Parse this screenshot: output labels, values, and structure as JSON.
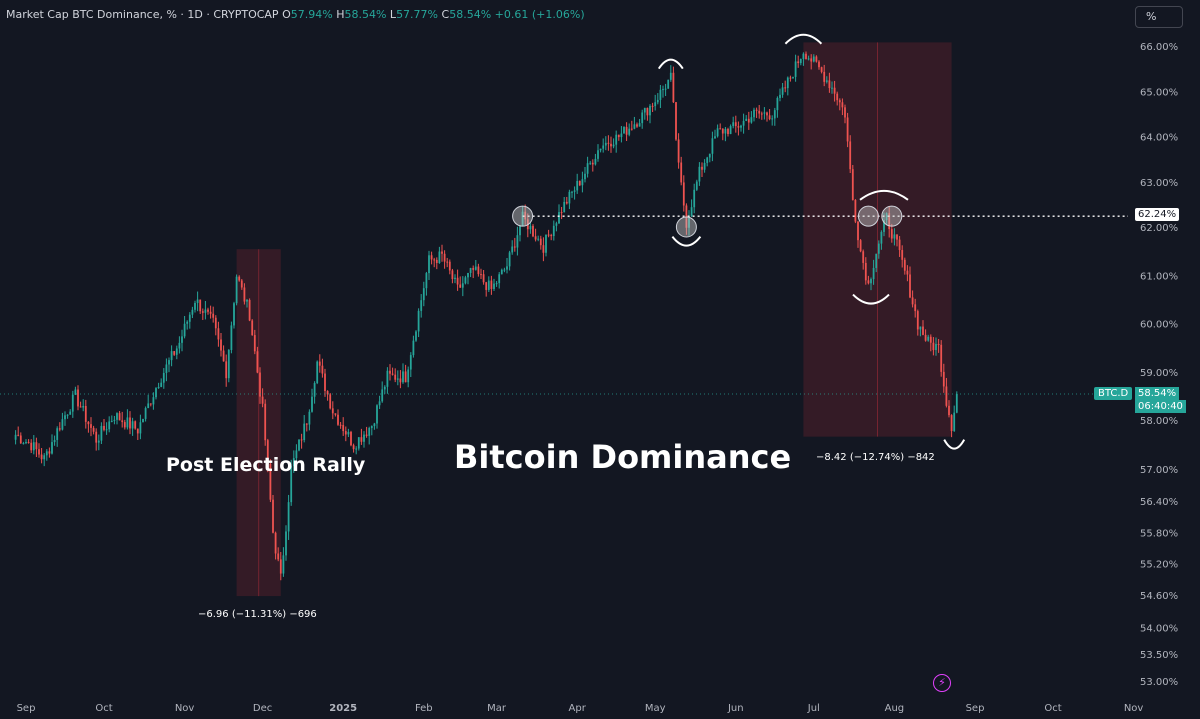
{
  "header": {
    "title": "Market Cap BTC Dominance, % · 1D · CRYPTOCAP",
    "o_label": "O",
    "o_value": "57.94%",
    "h_label": "H",
    "h_value": "58.54%",
    "l_label": "L",
    "l_value": "57.77%",
    "c_label": "C",
    "c_value": "58.54%",
    "change": "+0.61 (+1.06%)"
  },
  "toolbar": {
    "scale_button": "%"
  },
  "annotations": {
    "main_title": "Bitcoin Dominance",
    "rally_label": "Post Election Rally",
    "measure_1": "−6.96 (−11.31%) −696",
    "measure_2": "−8.42 (−12.74%) −842"
  },
  "price_tags": {
    "level_line": "62.24%",
    "symbol": "BTC.D",
    "last_price": "58.54%",
    "countdown": "06:40:40"
  },
  "colors": {
    "background": "#131722",
    "up": "#26a69a",
    "down": "#ef5350",
    "axis_text": "#b2b5be",
    "measure_box": "rgba(242,54,69,0.15)"
  },
  "chart_data": {
    "type": "candlestick",
    "title": "Market Cap BTC Dominance, % · 1D · CRYPTOCAP",
    "ylim": [
      52.8,
      66.6
    ],
    "y_ticks": [
      "66.00%",
      "65.00%",
      "64.00%",
      "63.00%",
      "62.00%",
      "61.00%",
      "60.00%",
      "59.00%",
      "58.00%",
      "57.00%",
      "56.40%",
      "55.80%",
      "55.20%",
      "54.60%",
      "54.00%",
      "53.50%",
      "53.00%"
    ],
    "x_ticks": [
      "Sep",
      "Oct",
      "Nov",
      "Dec",
      "2025",
      "Feb",
      "Mar",
      "Apr",
      "May",
      "Jun",
      "Jul",
      "Aug",
      "Sep",
      "Oct",
      "Nov"
    ],
    "anchors": [
      {
        "date": "2024-08-28",
        "value": 57.7
      },
      {
        "date": "2024-09-03",
        "value": 57.5
      },
      {
        "date": "2024-09-08",
        "value": 57.2
      },
      {
        "date": "2024-09-14",
        "value": 57.9
      },
      {
        "date": "2024-09-20",
        "value": 58.5
      },
      {
        "date": "2024-09-28",
        "value": 57.6
      },
      {
        "date": "2024-10-05",
        "value": 58.1
      },
      {
        "date": "2024-10-14",
        "value": 57.8
      },
      {
        "date": "2024-10-22",
        "value": 58.8
      },
      {
        "date": "2024-10-30",
        "value": 59.6
      },
      {
        "date": "2024-11-05",
        "value": 60.5
      },
      {
        "date": "2024-11-12",
        "value": 60.0
      },
      {
        "date": "2024-11-17",
        "value": 59.0
      },
      {
        "date": "2024-11-21",
        "value": 61.0
      },
      {
        "date": "2024-11-26",
        "value": 60.2
      },
      {
        "date": "2024-12-01",
        "value": 58.2
      },
      {
        "date": "2024-12-05",
        "value": 55.8
      },
      {
        "date": "2024-12-08",
        "value": 54.9
      },
      {
        "date": "2024-12-12",
        "value": 57.0
      },
      {
        "date": "2024-12-18",
        "value": 58.0
      },
      {
        "date": "2024-12-22",
        "value": 59.2
      },
      {
        "date": "2024-12-28",
        "value": 58.2
      },
      {
        "date": "2025-01-05",
        "value": 57.5
      },
      {
        "date": "2025-01-12",
        "value": 57.9
      },
      {
        "date": "2025-01-18",
        "value": 58.9
      },
      {
        "date": "2025-01-25",
        "value": 58.9
      },
      {
        "date": "2025-02-03",
        "value": 61.3
      },
      {
        "date": "2025-02-08",
        "value": 61.4
      },
      {
        "date": "2025-02-14",
        "value": 60.7
      },
      {
        "date": "2025-02-20",
        "value": 61.1
      },
      {
        "date": "2025-02-27",
        "value": 60.7
      },
      {
        "date": "2025-03-05",
        "value": 61.2
      },
      {
        "date": "2025-03-11",
        "value": 62.2
      },
      {
        "date": "2025-03-19",
        "value": 61.6
      },
      {
        "date": "2025-03-26",
        "value": 62.4
      },
      {
        "date": "2025-04-03",
        "value": 63.1
      },
      {
        "date": "2025-04-10",
        "value": 63.8
      },
      {
        "date": "2025-04-17",
        "value": 64.0
      },
      {
        "date": "2025-04-25",
        "value": 64.4
      },
      {
        "date": "2025-05-01",
        "value": 64.8
      },
      {
        "date": "2025-05-07",
        "value": 65.3
      },
      {
        "date": "2025-05-10",
        "value": 63.3
      },
      {
        "date": "2025-05-13",
        "value": 62.1
      },
      {
        "date": "2025-05-18",
        "value": 63.2
      },
      {
        "date": "2025-05-25",
        "value": 64.1
      },
      {
        "date": "2025-06-01",
        "value": 64.2
      },
      {
        "date": "2025-06-08",
        "value": 64.5
      },
      {
        "date": "2025-06-15",
        "value": 64.5
      },
      {
        "date": "2025-06-21",
        "value": 65.2
      },
      {
        "date": "2025-06-27",
        "value": 65.9
      },
      {
        "date": "2025-07-03",
        "value": 65.5
      },
      {
        "date": "2025-07-09",
        "value": 65.0
      },
      {
        "date": "2025-07-13",
        "value": 64.5
      },
      {
        "date": "2025-07-16",
        "value": 62.6
      },
      {
        "date": "2025-07-19",
        "value": 61.5
      },
      {
        "date": "2025-07-22",
        "value": 60.8
      },
      {
        "date": "2025-07-25",
        "value": 61.5
      },
      {
        "date": "2025-07-29",
        "value": 62.2
      },
      {
        "date": "2025-08-02",
        "value": 61.6
      },
      {
        "date": "2025-08-06",
        "value": 60.9
      },
      {
        "date": "2025-08-10",
        "value": 60.0
      },
      {
        "date": "2025-08-14",
        "value": 59.6
      },
      {
        "date": "2025-08-18",
        "value": 59.5
      },
      {
        "date": "2025-08-21",
        "value": 58.4
      },
      {
        "date": "2025-08-23",
        "value": 57.9
      },
      {
        "date": "2025-08-25",
        "value": 58.54
      }
    ],
    "horizontal_level": 62.24,
    "last_close": 58.54,
    "measure_ranges": [
      {
        "start": "2024-11-21",
        "end": "2024-12-08",
        "from": 61.54,
        "to": 54.58
      },
      {
        "start": "2025-06-27",
        "end": "2025-08-23",
        "from": 66.08,
        "to": 57.66
      }
    ]
  }
}
